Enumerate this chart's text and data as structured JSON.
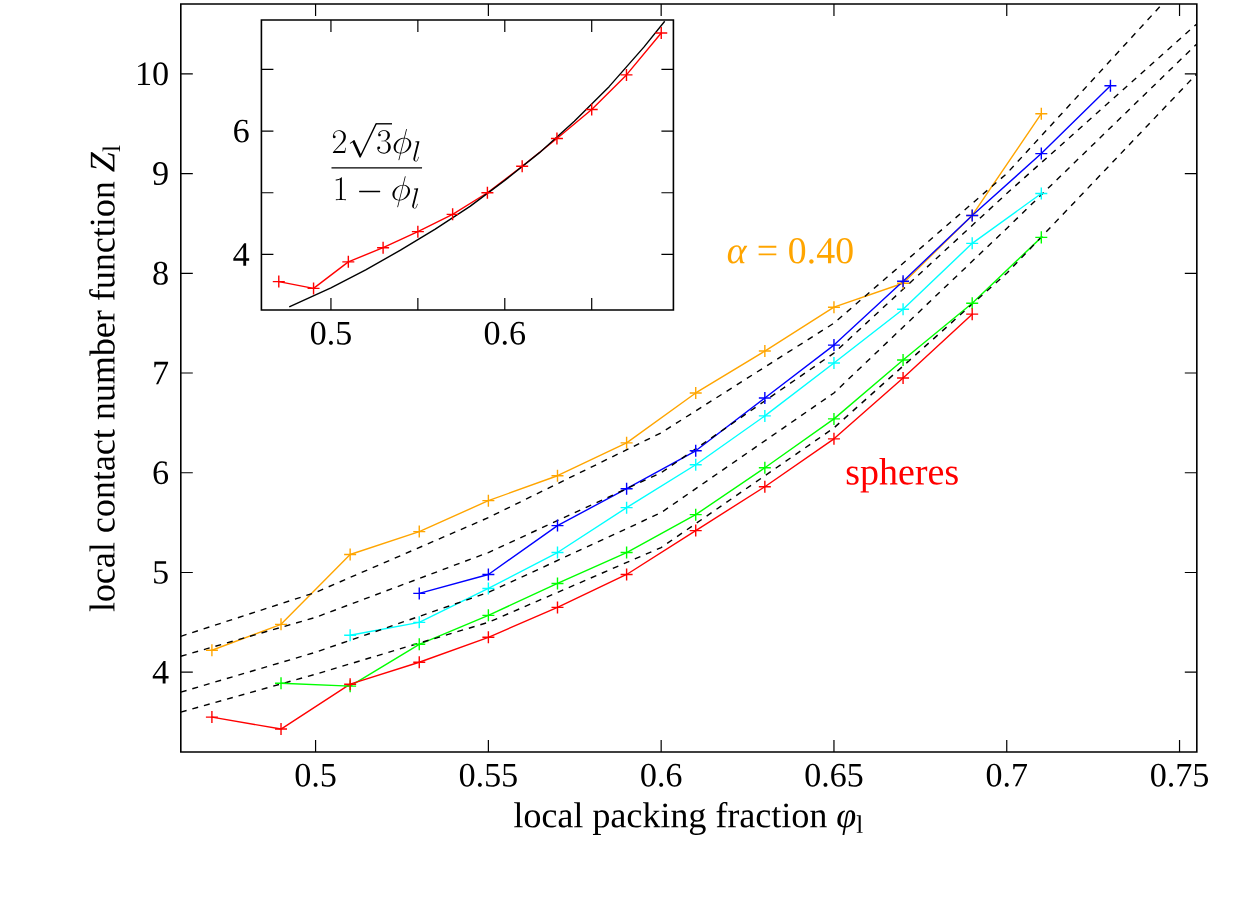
{
  "chart_data": [
    {
      "type": "line",
      "xlabel": "local packing fraction *φ*$_{l}$",
      "ylabel": "local contact number function *Z*$_{l}$",
      "xlim": [
        0.461,
        0.755
      ],
      "ylim": [
        3.2,
        10.7
      ],
      "xticks": [
        0.5,
        0.55,
        0.6,
        0.65,
        0.7,
        0.75
      ],
      "yticks": [
        4,
        5,
        6,
        7,
        8,
        9,
        10
      ],
      "grid": false,
      "series": [
        {
          "color": "#ffa500",
          "marker": "cross",
          "line_style": "solid",
          "x": [
            0.47,
            0.49,
            0.51,
            0.53,
            0.55,
            0.57,
            0.59,
            0.61,
            0.63,
            0.65,
            0.67,
            0.69,
            0.71
          ],
          "values": [
            4.22,
            4.48,
            5.18,
            5.41,
            5.72,
            5.97,
            6.3,
            6.8,
            7.22,
            7.66,
            7.9,
            8.58,
            9.6
          ]
        },
        {
          "color": "#0000ff",
          "marker": "cross",
          "line_style": "solid",
          "x": [
            0.53,
            0.55,
            0.57,
            0.59,
            0.61,
            0.63,
            0.65,
            0.67,
            0.69,
            0.71,
            0.73
          ],
          "values": [
            4.79,
            4.98,
            5.47,
            5.84,
            6.22,
            6.75,
            7.28,
            7.92,
            8.58,
            9.2,
            9.88
          ]
        },
        {
          "color": "#00ffff",
          "marker": "cross",
          "line_style": "solid",
          "x": [
            0.51,
            0.53,
            0.55,
            0.57,
            0.59,
            0.61,
            0.63,
            0.65,
            0.67,
            0.69,
            0.71
          ],
          "values": [
            4.37,
            4.5,
            4.84,
            5.2,
            5.65,
            6.08,
            6.57,
            7.1,
            7.64,
            8.3,
            8.8
          ]
        },
        {
          "color": "#00ff00",
          "marker": "cross",
          "line_style": "solid",
          "x": [
            0.49,
            0.51,
            0.53,
            0.55,
            0.57,
            0.59,
            0.61,
            0.63,
            0.65,
            0.67,
            0.69,
            0.71
          ],
          "values": [
            3.89,
            3.86,
            4.28,
            4.57,
            4.89,
            5.2,
            5.58,
            6.05,
            6.54,
            7.13,
            7.7,
            8.36
          ]
        },
        {
          "color": "#ff0000",
          "marker": "cross",
          "line_style": "solid",
          "x": [
            0.47,
            0.49,
            0.51,
            0.53,
            0.55,
            0.57,
            0.59,
            0.61,
            0.63,
            0.65,
            0.67,
            0.69
          ],
          "values": [
            3.55,
            3.43,
            3.88,
            4.1,
            4.35,
            4.65,
            4.98,
            5.42,
            5.86,
            6.34,
            6.95,
            7.59
          ]
        },
        {
          "color": "#000000",
          "marker": "none",
          "line_style": "dashed",
          "x": [
            0.461,
            0.5,
            0.55,
            0.6,
            0.65,
            0.7,
            0.745
          ],
          "values": [
            4.36,
            4.8,
            5.55,
            6.4,
            7.5,
            9.0,
            10.7
          ]
        },
        {
          "color": "#000000",
          "marker": "none",
          "line_style": "dashed",
          "x": [
            0.461,
            0.5,
            0.55,
            0.6,
            0.65,
            0.7,
            0.755
          ],
          "values": [
            4.16,
            4.55,
            5.2,
            6.0,
            7.2,
            8.8,
            10.5
          ]
        },
        {
          "color": "#000000",
          "marker": "none",
          "line_style": "dashed",
          "x": [
            0.461,
            0.5,
            0.55,
            0.6,
            0.65,
            0.7,
            0.755
          ],
          "values": [
            3.8,
            4.2,
            4.8,
            5.6,
            6.8,
            8.45,
            10.3
          ]
        },
        {
          "color": "#000000",
          "marker": "none",
          "line_style": "dashed",
          "x": [
            0.461,
            0.5,
            0.55,
            0.6,
            0.65,
            0.7,
            0.755
          ],
          "values": [
            3.6,
            3.98,
            4.5,
            5.25,
            6.45,
            8.0,
            10.0
          ]
        }
      ],
      "annotations": [
        "*α* = 0.40",
        "spheres"
      ]
    },
    {
      "type": "line",
      "xlim": [
        0.46,
        0.697
      ],
      "ylim": [
        3.1,
        7.8
      ],
      "xticks": [
        0.5,
        {
          "value": 0.55,
          "label": null
        },
        0.6,
        {
          "value": 0.65,
          "label": null
        }
      ],
      "yticks": [
        4,
        {
          "value": 5,
          "label": null
        },
        6,
        {
          "value": 7,
          "label": null
        }
      ],
      "grid": false,
      "series": [
        {
          "color": "#ff0000",
          "marker": "cross",
          "line_style": "solid",
          "x": [
            0.47,
            0.49,
            0.51,
            0.53,
            0.55,
            0.57,
            0.59,
            0.61,
            0.63,
            0.65,
            0.67,
            0.69
          ],
          "values": [
            3.56,
            3.45,
            3.88,
            4.11,
            4.37,
            4.65,
            5.0,
            5.43,
            5.88,
            6.35,
            6.91,
            7.59
          ]
        },
        {
          "color": "#000000",
          "marker": "none",
          "line_style": "solid",
          "x": [
            0.476,
            0.5,
            0.52,
            0.54,
            0.56,
            0.58,
            0.6,
            0.62,
            0.64,
            0.66,
            0.68,
            0.692
          ],
          "values": [
            3.15,
            3.46,
            3.75,
            4.07,
            4.41,
            4.78,
            5.2,
            5.65,
            6.16,
            6.72,
            7.36,
            7.78
          ]
        }
      ],
      "annotations": [
        "\\frac{2\\sqrt{3}\\phi_l}{1-\\phi_l}"
      ]
    }
  ]
}
